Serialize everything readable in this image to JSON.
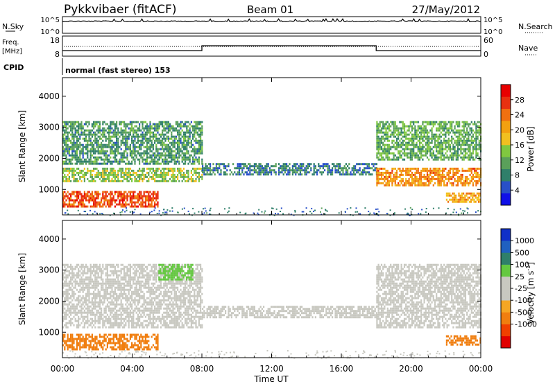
{
  "header": {
    "title": "Pykkvibaer (fitACF)",
    "beam": "Beam 01",
    "date": "27/May/2012"
  },
  "noise_panel": {
    "left_label": "N.Sky",
    "right_label": "N.Search",
    "left_ticks": [
      "10^5",
      "10^0"
    ],
    "right_ticks": [
      "10^5",
      "10^0"
    ]
  },
  "freq_panel": {
    "left_label_top": "Freq.",
    "left_label_bottom": "[MHz]",
    "right_label": "Nave",
    "left_ticks": [
      "18",
      "8"
    ],
    "right_ticks": [
      "60",
      "0"
    ]
  },
  "cpid": {
    "label": "CPID",
    "text": "normal (fast stereo) 153"
  },
  "colors": {
    "power_scale": [
      "#1010e8",
      "#2850c8",
      "#2f7f6a",
      "#5aa05a",
      "#80c840",
      "#f2c020",
      "#f3a010",
      "#f07010",
      "#e83010",
      "#e80000"
    ],
    "velocity_scale": [
      "#e00000",
      "#f04000",
      "#f07e0f",
      "#f5a623",
      "#c8c8c0",
      "#c8c8c0",
      "#64c840",
      "#2f7f6a",
      "#2060c0",
      "#1030c8"
    ]
  },
  "chart_data": [
    {
      "type": "heatmap",
      "quantity": "Power",
      "xlabel": "",
      "ylabel": "Slant Range [km]",
      "xlim": [
        0,
        24
      ],
      "ylim": [
        180,
        4600
      ],
      "y_ticks": [
        1000,
        2000,
        3000,
        4000
      ],
      "colorbar_label": "Power [dB]",
      "colorbar_range": [
        0,
        32
      ],
      "colorbar_ticks": [
        4,
        8,
        12,
        16,
        20,
        24,
        28
      ],
      "features": [
        {
          "t_start": 0,
          "t_end": 8.0,
          "range_low": 1250,
          "range_high": 1700,
          "value": 14
        },
        {
          "t_start": 0,
          "t_end": 5.5,
          "range_low": 450,
          "range_high": 950,
          "value": 26
        },
        {
          "t_start": 0,
          "t_end": 8.0,
          "range_low": 1800,
          "range_high": 3200,
          "value": 10
        },
        {
          "t_start": 8.0,
          "t_end": 18.0,
          "range_low": 1500,
          "range_high": 1850,
          "value": 8
        },
        {
          "t_start": 18.0,
          "t_end": 24.0,
          "range_low": 1150,
          "range_high": 1700,
          "value": 22
        },
        {
          "t_start": 18.0,
          "t_end": 24.0,
          "range_low": 1950,
          "range_high": 3200,
          "value": 12
        },
        {
          "t_start": 22.0,
          "t_end": 24.0,
          "range_low": 600,
          "range_high": 900,
          "value": 20
        }
      ]
    },
    {
      "type": "heatmap",
      "quantity": "Velocity",
      "xlabel": "Time UT",
      "ylabel": "Slant Range [km]",
      "xlim": [
        0,
        24
      ],
      "ylim": [
        180,
        4600
      ],
      "x_ticks": [
        "00:00",
        "04:00",
        "08:00",
        "12:00",
        "16:00",
        "20:00",
        "00:00"
      ],
      "y_ticks": [
        1000,
        2000,
        3000,
        4000
      ],
      "colorbar_label": "Velocity [m s",
      "colorbar_label_exponent": "-1",
      "colorbar_label_close": "]",
      "colorbar_ticks": [
        "1000",
        "500",
        "100",
        "25",
        "-25",
        "-100",
        "-500",
        "-1000"
      ],
      "features": [
        {
          "t_start": 0,
          "t_end": 8.0,
          "range_low": 1150,
          "range_high": 3200,
          "value": 0
        },
        {
          "t_start": 0,
          "t_end": 5.5,
          "range_low": 450,
          "range_high": 950,
          "value": -300
        },
        {
          "t_start": 5.5,
          "t_end": 7.5,
          "range_low": 2700,
          "range_high": 3200,
          "value": 200
        },
        {
          "t_start": 8.0,
          "t_end": 18.0,
          "range_low": 1500,
          "range_high": 1850,
          "value": 0
        },
        {
          "t_start": 18.0,
          "t_end": 24.0,
          "range_low": 1150,
          "range_high": 3200,
          "value": 0
        },
        {
          "t_start": 22.0,
          "t_end": 24.0,
          "range_low": 600,
          "range_high": 900,
          "value": -300
        }
      ]
    }
  ]
}
